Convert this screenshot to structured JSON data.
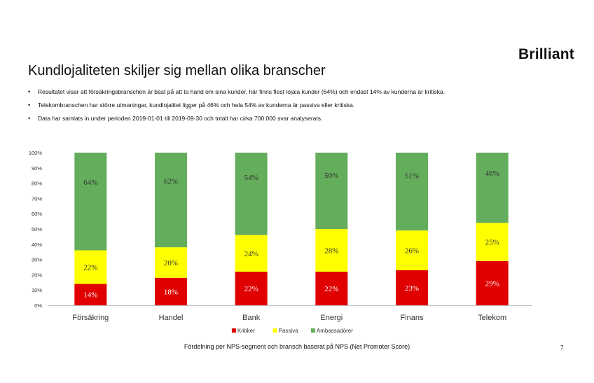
{
  "brand": {
    "logo_text": "Brilliant"
  },
  "slide": {
    "title": "Kundlojaliteten skiljer sig mellan olika branscher",
    "bullets": [
      "Resultatet visar att försäkringsbranschen är bäst på att ta hand om sina kunder, här finns flest lojala kunder (64%) och endast 14% av kunderna är kritiska.",
      "Telekombranschen har större utmaningar, kundlojalitet ligger på 46% och hela 54% av kunderna är passiva eller kritiska.",
      "Data har samlats in under perioden 2019-01-01 till 2019-09-30 och totalt har cirka 700.000 svar analyserats."
    ],
    "caption": "Fördelning per NPS-segment och bransch baserat på NPS (Net Promoter Score)",
    "page_number": "7"
  },
  "chart_data": {
    "type": "bar",
    "stacked": true,
    "categories": [
      "Försäkring",
      "Handel",
      "Bank",
      "Energi",
      "Finans",
      "Telekom"
    ],
    "series": [
      {
        "name": "Kritiker",
        "values": [
          14,
          18,
          22,
          22,
          23,
          29
        ],
        "color": "#e00000"
      },
      {
        "name": "Passiva",
        "values": [
          22,
          20,
          24,
          28,
          26,
          25
        ],
        "color": "#ffff00"
      },
      {
        "name": "Ambassadörer",
        "values": [
          64,
          62,
          54,
          50,
          51,
          46
        ],
        "color": "#64ad5c"
      }
    ],
    "y_ticks": [
      "0%",
      "10%",
      "20%",
      "30%",
      "40%",
      "50%",
      "60%",
      "70%",
      "80%",
      "90%",
      "100%"
    ],
    "ylim": [
      0,
      100
    ],
    "grid": false,
    "legend_position": "bottom",
    "data_labels": true
  }
}
